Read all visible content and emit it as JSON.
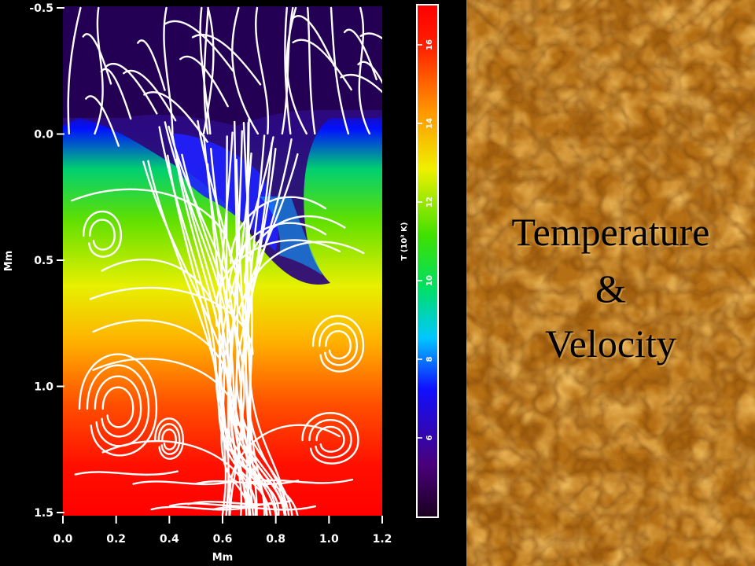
{
  "figure": {
    "x_axis": {
      "label": "Mm",
      "range": [
        0.0,
        1.2
      ],
      "ticks": [
        "0.0",
        "0.2",
        "0.4",
        "0.6",
        "0.8",
        "1.0",
        "1.2"
      ]
    },
    "y_axis": {
      "label": "Mm",
      "range": [
        -0.5,
        1.5
      ],
      "ticks": [
        "-0.5",
        "0.0",
        "0.5",
        "1.0",
        "1.5"
      ]
    },
    "colorbar": {
      "label": "T (10³ K)",
      "range": [
        4,
        17
      ],
      "ticks": [
        "6",
        "8",
        "10",
        "12",
        "14",
        "16"
      ],
      "colors": [
        "#1a0020",
        "#3a005a",
        "#2020ff",
        "#00e0e0",
        "#00e000",
        "#80e000",
        "#ffff00",
        "#ffa000",
        "#ff3000",
        "#ff0000"
      ]
    },
    "overlay": "velocity-streamlines"
  },
  "title": {
    "line1": "Temperature",
    "line2": "&",
    "line3": "Velocity"
  },
  "colors": {
    "background": "#000000",
    "granulation_base": "#b06a10",
    "granulation_bright": "#ffd070"
  }
}
